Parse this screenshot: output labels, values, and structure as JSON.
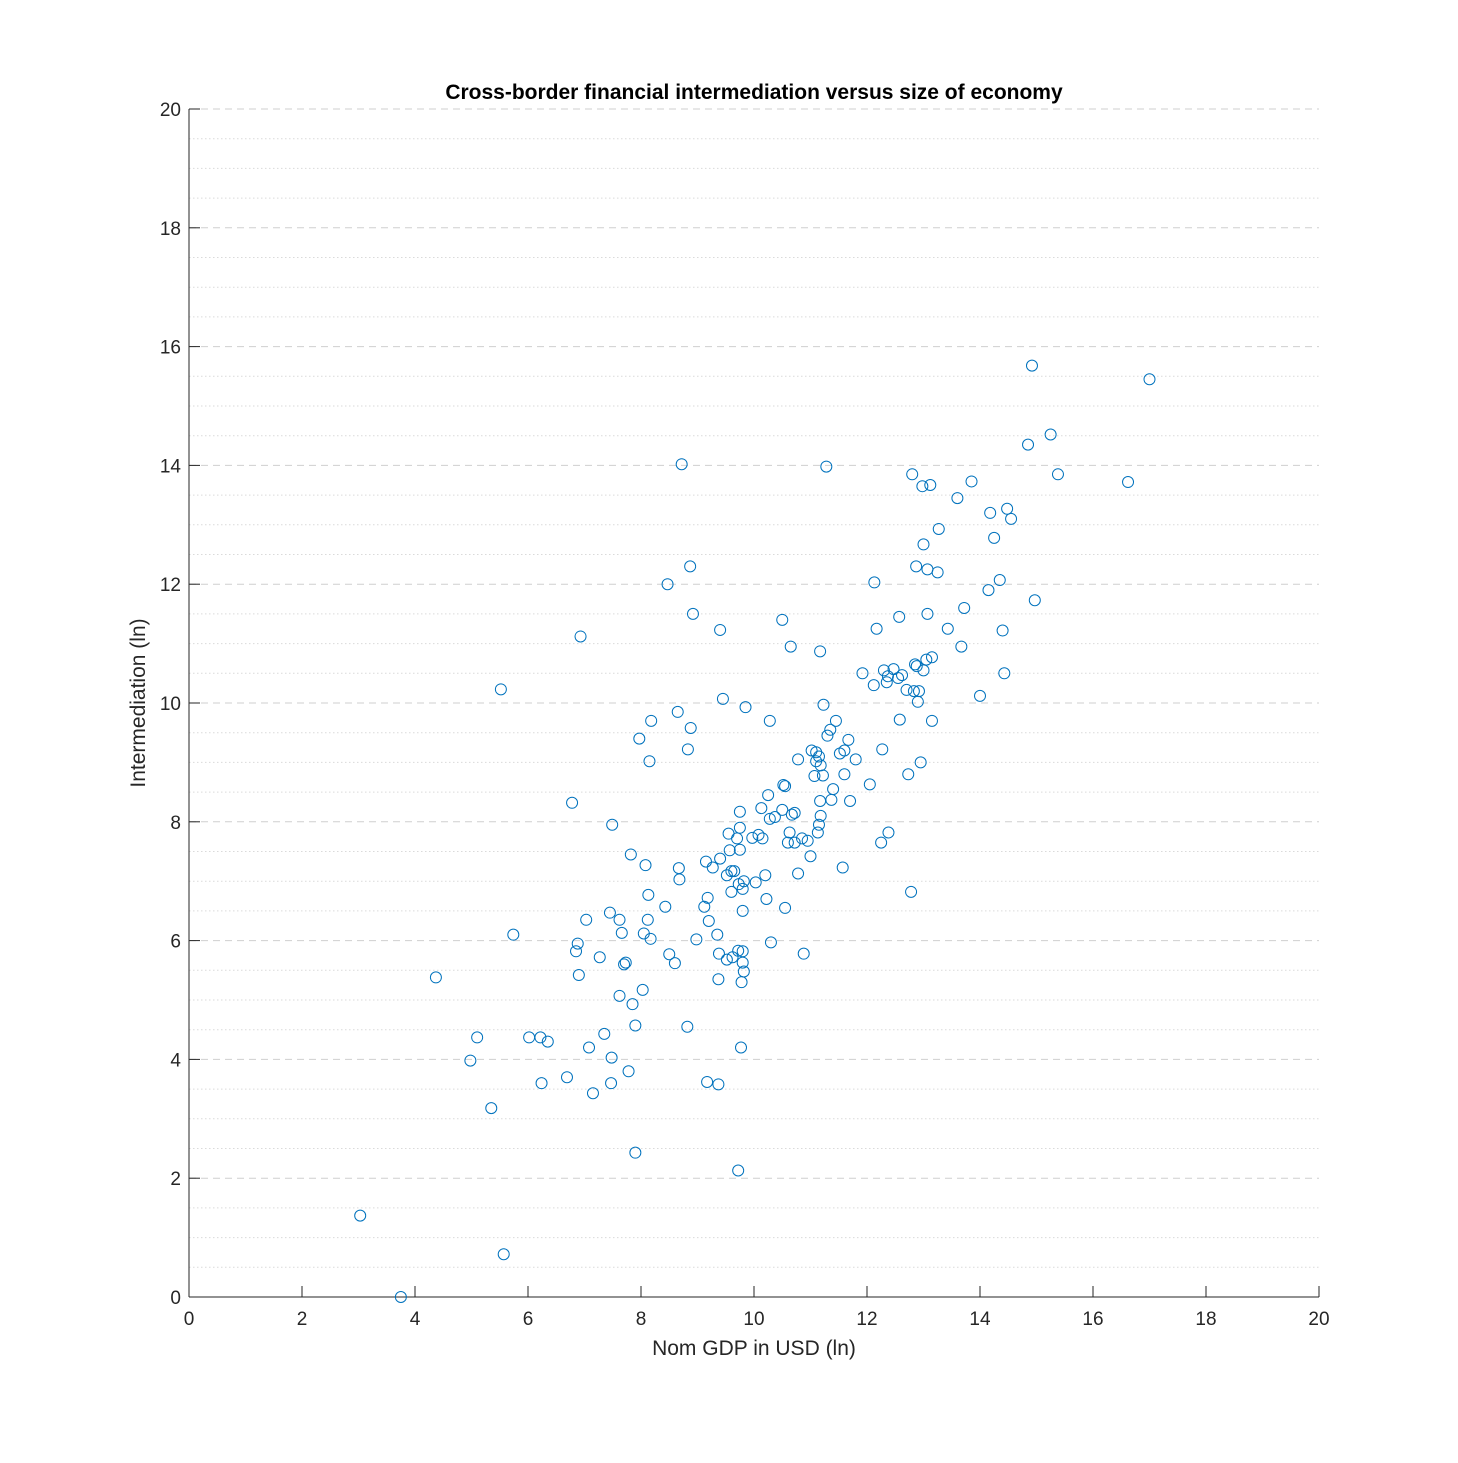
{
  "chart_data": {
    "type": "scatter",
    "title": "Cross-border financial intermediation versus size of economy",
    "xlabel": "Nom GDP in USD (ln)",
    "ylabel": "Intermediation (ln)",
    "xlim": [
      0,
      20
    ],
    "ylim": [
      0,
      20
    ],
    "xticks": [
      0,
      2,
      4,
      6,
      8,
      10,
      12,
      14,
      16,
      18,
      20
    ],
    "yticks": [
      0,
      2,
      4,
      6,
      8,
      10,
      12,
      14,
      16,
      18,
      20
    ],
    "grid": {
      "major_y": "dashed",
      "minor_y": "dotted",
      "x": false
    },
    "marker": "open-circle",
    "color": "#0072bd",
    "points": [
      [
        3.03,
        1.37
      ],
      [
        3.75,
        0.0
      ],
      [
        4.37,
        5.38
      ],
      [
        4.98,
        3.98
      ],
      [
        5.1,
        4.37
      ],
      [
        5.35,
        3.18
      ],
      [
        5.52,
        10.23
      ],
      [
        5.57,
        0.72
      ],
      [
        5.74,
        6.1
      ],
      [
        6.02,
        4.37
      ],
      [
        6.22,
        4.37
      ],
      [
        6.24,
        3.6
      ],
      [
        6.35,
        4.3
      ],
      [
        6.69,
        3.7
      ],
      [
        6.78,
        8.32
      ],
      [
        6.85,
        5.82
      ],
      [
        6.88,
        5.95
      ],
      [
        6.9,
        5.42
      ],
      [
        6.93,
        11.12
      ],
      [
        7.03,
        6.35
      ],
      [
        7.08,
        4.2
      ],
      [
        7.15,
        3.43
      ],
      [
        7.27,
        5.72
      ],
      [
        7.35,
        4.43
      ],
      [
        7.45,
        6.47
      ],
      [
        7.47,
        3.6
      ],
      [
        7.48,
        4.03
      ],
      [
        7.49,
        7.95
      ],
      [
        7.62,
        5.07
      ],
      [
        7.62,
        6.35
      ],
      [
        7.66,
        6.13
      ],
      [
        7.7,
        5.6
      ],
      [
        7.73,
        5.63
      ],
      [
        7.78,
        3.8
      ],
      [
        7.82,
        7.45
      ],
      [
        7.85,
        4.93
      ],
      [
        7.9,
        4.57
      ],
      [
        7.9,
        2.43
      ],
      [
        7.97,
        9.4
      ],
      [
        8.03,
        5.17
      ],
      [
        8.05,
        6.12
      ],
      [
        8.08,
        7.27
      ],
      [
        8.12,
        6.35
      ],
      [
        8.13,
        6.77
      ],
      [
        8.15,
        9.02
      ],
      [
        8.17,
        6.03
      ],
      [
        8.18,
        9.7
      ],
      [
        8.43,
        6.57
      ],
      [
        8.47,
        12.0
      ],
      [
        8.5,
        5.77
      ],
      [
        8.6,
        5.62
      ],
      [
        8.65,
        9.85
      ],
      [
        8.67,
        7.22
      ],
      [
        8.68,
        7.03
      ],
      [
        8.72,
        14.02
      ],
      [
        8.82,
        4.55
      ],
      [
        8.83,
        9.22
      ],
      [
        8.87,
        12.3
      ],
      [
        8.88,
        9.58
      ],
      [
        8.92,
        11.5
      ],
      [
        8.98,
        6.02
      ],
      [
        9.12,
        6.57
      ],
      [
        9.15,
        7.33
      ],
      [
        9.17,
        3.62
      ],
      [
        9.18,
        6.72
      ],
      [
        9.2,
        6.33
      ],
      [
        9.27,
        7.23
      ],
      [
        9.35,
        6.1
      ],
      [
        9.37,
        3.58
      ],
      [
        9.37,
        5.35
      ],
      [
        9.38,
        5.78
      ],
      [
        9.4,
        7.38
      ],
      [
        9.4,
        11.23
      ],
      [
        9.45,
        10.07
      ],
      [
        9.52,
        5.68
      ],
      [
        9.52,
        7.1
      ],
      [
        9.55,
        7.8
      ],
      [
        9.57,
        7.52
      ],
      [
        9.6,
        7.17
      ],
      [
        9.6,
        6.82
      ],
      [
        9.62,
        5.72
      ],
      [
        9.65,
        7.17
      ],
      [
        9.7,
        7.72
      ],
      [
        9.72,
        5.83
      ],
      [
        9.72,
        2.13
      ],
      [
        9.73,
        6.95
      ],
      [
        9.75,
        8.17
      ],
      [
        9.75,
        7.9
      ],
      [
        9.75,
        7.53
      ],
      [
        9.77,
        4.2
      ],
      [
        9.78,
        5.3
      ],
      [
        9.8,
        5.82
      ],
      [
        9.8,
        6.5
      ],
      [
        9.8,
        6.87
      ],
      [
        9.8,
        5.63
      ],
      [
        9.82,
        7.0
      ],
      [
        9.82,
        5.48
      ],
      [
        9.85,
        9.93
      ],
      [
        9.97,
        7.73
      ],
      [
        10.03,
        6.98
      ],
      [
        10.08,
        7.78
      ],
      [
        10.13,
        8.23
      ],
      [
        10.15,
        7.72
      ],
      [
        10.2,
        7.1
      ],
      [
        10.22,
        6.7
      ],
      [
        10.25,
        8.45
      ],
      [
        10.28,
        9.7
      ],
      [
        10.28,
        8.05
      ],
      [
        10.3,
        5.97
      ],
      [
        10.37,
        8.08
      ],
      [
        10.5,
        8.2
      ],
      [
        10.5,
        11.4
      ],
      [
        10.52,
        8.62
      ],
      [
        10.55,
        8.6
      ],
      [
        10.55,
        6.55
      ],
      [
        10.6,
        7.65
      ],
      [
        10.63,
        7.82
      ],
      [
        10.65,
        10.95
      ],
      [
        10.67,
        8.12
      ],
      [
        10.72,
        8.15
      ],
      [
        10.72,
        7.65
      ],
      [
        10.78,
        9.05
      ],
      [
        10.78,
        7.13
      ],
      [
        10.85,
        7.72
      ],
      [
        10.88,
        5.78
      ],
      [
        10.95,
        7.68
      ],
      [
        11.0,
        7.42
      ],
      [
        11.02,
        9.2
      ],
      [
        11.07,
        8.77
      ],
      [
        11.1,
        9.17
      ],
      [
        11.1,
        9.02
      ],
      [
        11.13,
        7.82
      ],
      [
        11.15,
        9.1
      ],
      [
        11.15,
        7.95
      ],
      [
        11.17,
        8.35
      ],
      [
        11.17,
        10.87
      ],
      [
        11.18,
        8.1
      ],
      [
        11.18,
        8.95
      ],
      [
        11.22,
        8.78
      ],
      [
        11.23,
        9.97
      ],
      [
        11.28,
        13.98
      ],
      [
        11.3,
        9.45
      ],
      [
        11.35,
        9.55
      ],
      [
        11.37,
        8.37
      ],
      [
        11.4,
        8.55
      ],
      [
        11.45,
        9.7
      ],
      [
        11.52,
        9.15
      ],
      [
        11.57,
        7.23
      ],
      [
        11.6,
        9.2
      ],
      [
        11.6,
        8.8
      ],
      [
        11.67,
        9.38
      ],
      [
        11.7,
        8.35
      ],
      [
        11.8,
        9.05
      ],
      [
        11.92,
        10.5
      ],
      [
        12.05,
        8.63
      ],
      [
        12.12,
        10.3
      ],
      [
        12.13,
        12.03
      ],
      [
        12.17,
        11.25
      ],
      [
        12.25,
        7.65
      ],
      [
        12.27,
        9.22
      ],
      [
        12.3,
        10.55
      ],
      [
        12.35,
        10.35
      ],
      [
        12.37,
        10.45
      ],
      [
        12.38,
        7.82
      ],
      [
        12.47,
        10.57
      ],
      [
        12.55,
        10.42
      ],
      [
        12.57,
        11.45
      ],
      [
        12.58,
        9.72
      ],
      [
        12.62,
        10.47
      ],
      [
        12.7,
        10.22
      ],
      [
        12.73,
        8.8
      ],
      [
        12.78,
        6.82
      ],
      [
        12.8,
        13.85
      ],
      [
        12.83,
        10.2
      ],
      [
        12.85,
        10.65
      ],
      [
        12.87,
        12.3
      ],
      [
        12.88,
        10.62
      ],
      [
        12.9,
        10.02
      ],
      [
        12.92,
        10.2
      ],
      [
        12.95,
        9.0
      ],
      [
        12.98,
        13.65
      ],
      [
        13.0,
        10.55
      ],
      [
        13.0,
        12.67
      ],
      [
        13.05,
        10.73
      ],
      [
        13.07,
        11.5
      ],
      [
        13.07,
        12.25
      ],
      [
        13.12,
        13.67
      ],
      [
        13.15,
        10.77
      ],
      [
        13.15,
        9.7
      ],
      [
        13.25,
        12.2
      ],
      [
        13.27,
        12.93
      ],
      [
        13.43,
        11.25
      ],
      [
        13.6,
        13.45
      ],
      [
        13.67,
        10.95
      ],
      [
        13.72,
        11.6
      ],
      [
        13.85,
        13.73
      ],
      [
        14.0,
        10.12
      ],
      [
        14.15,
        11.9
      ],
      [
        14.18,
        13.2
      ],
      [
        14.25,
        12.78
      ],
      [
        14.35,
        12.07
      ],
      [
        14.4,
        11.22
      ],
      [
        14.43,
        10.5
      ],
      [
        14.48,
        13.27
      ],
      [
        14.55,
        13.1
      ],
      [
        14.85,
        14.35
      ],
      [
        14.92,
        15.68
      ],
      [
        14.97,
        11.73
      ],
      [
        15.25,
        14.52
      ],
      [
        15.38,
        13.85
      ],
      [
        16.62,
        13.72
      ],
      [
        17.0,
        15.45
      ]
    ]
  }
}
